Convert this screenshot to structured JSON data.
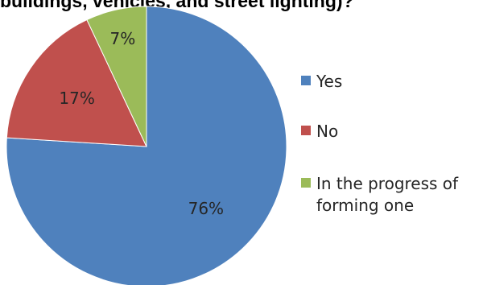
{
  "title": "buildings, vehicles, and street lighting)?",
  "chart_data": {
    "type": "pie",
    "categories": [
      "Yes",
      "No",
      "In the progress of forming one"
    ],
    "values": [
      76,
      17,
      7
    ],
    "data_labels": [
      "76%",
      "17%",
      "7%"
    ],
    "colors": [
      "#4F81BD",
      "#C0504D",
      "#9BBB59"
    ],
    "start_angle": "top (12 o'clock), clockwise",
    "legend_position": "right"
  }
}
